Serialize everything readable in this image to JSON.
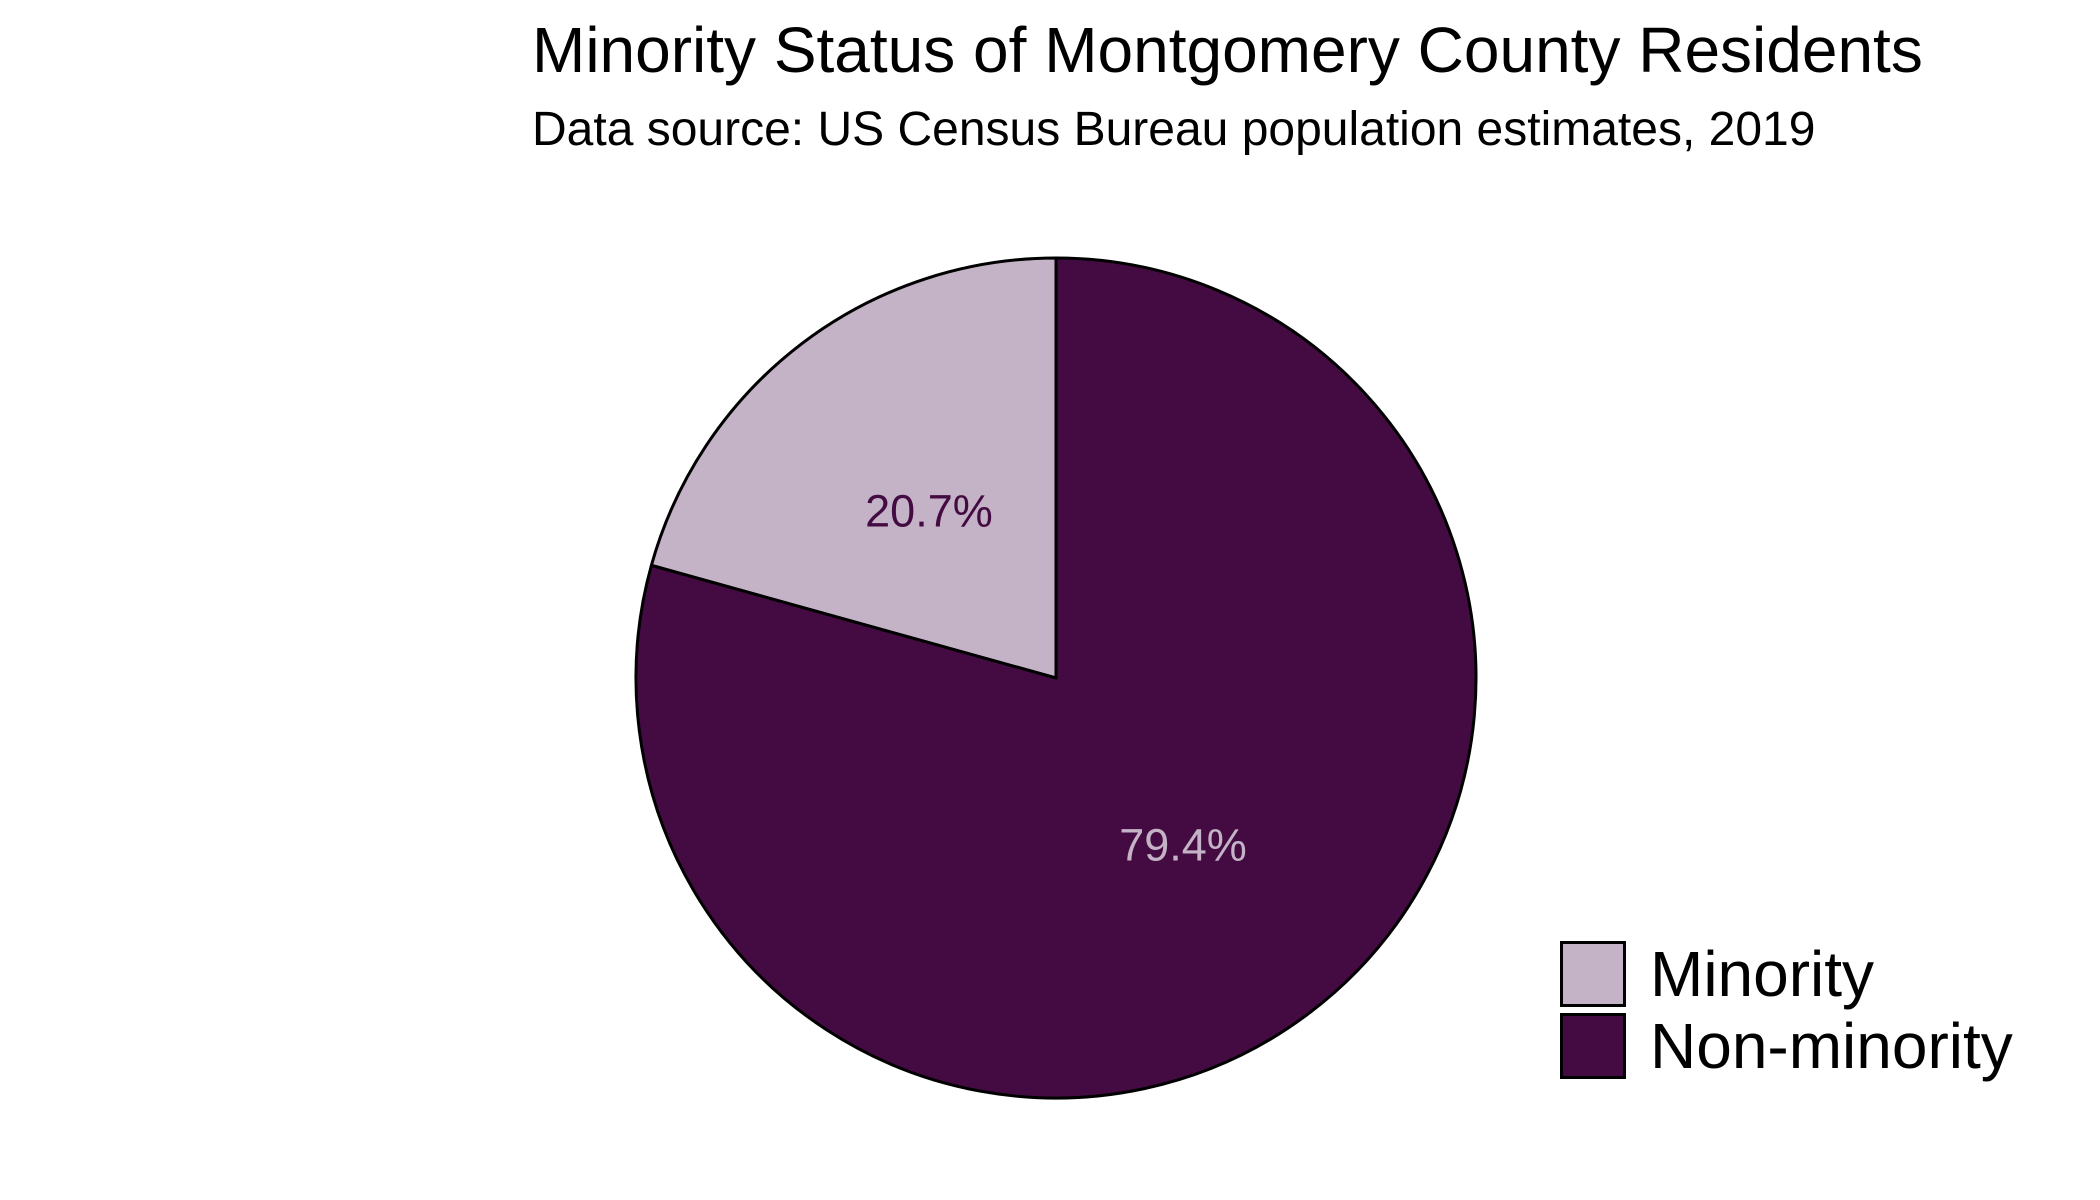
{
  "chart_data": {
    "type": "pie",
    "title": "Minority Status of Montgomery County Residents",
    "subtitle": "Data source: US Census Bureau population estimates, 2019",
    "slices": [
      {
        "label": "Minority",
        "value": 20.7,
        "value_label": "20.7%",
        "color": "#c4b2c6",
        "label_color": "#430b42"
      },
      {
        "label": "Non-minority",
        "value": 79.4,
        "value_label": "79.4%",
        "color": "#430b42",
        "label_color": "#c4b2c6"
      }
    ],
    "start_angle": "12 o'clock",
    "direction": "counterclockwise",
    "legend_position": "bottom-right"
  }
}
